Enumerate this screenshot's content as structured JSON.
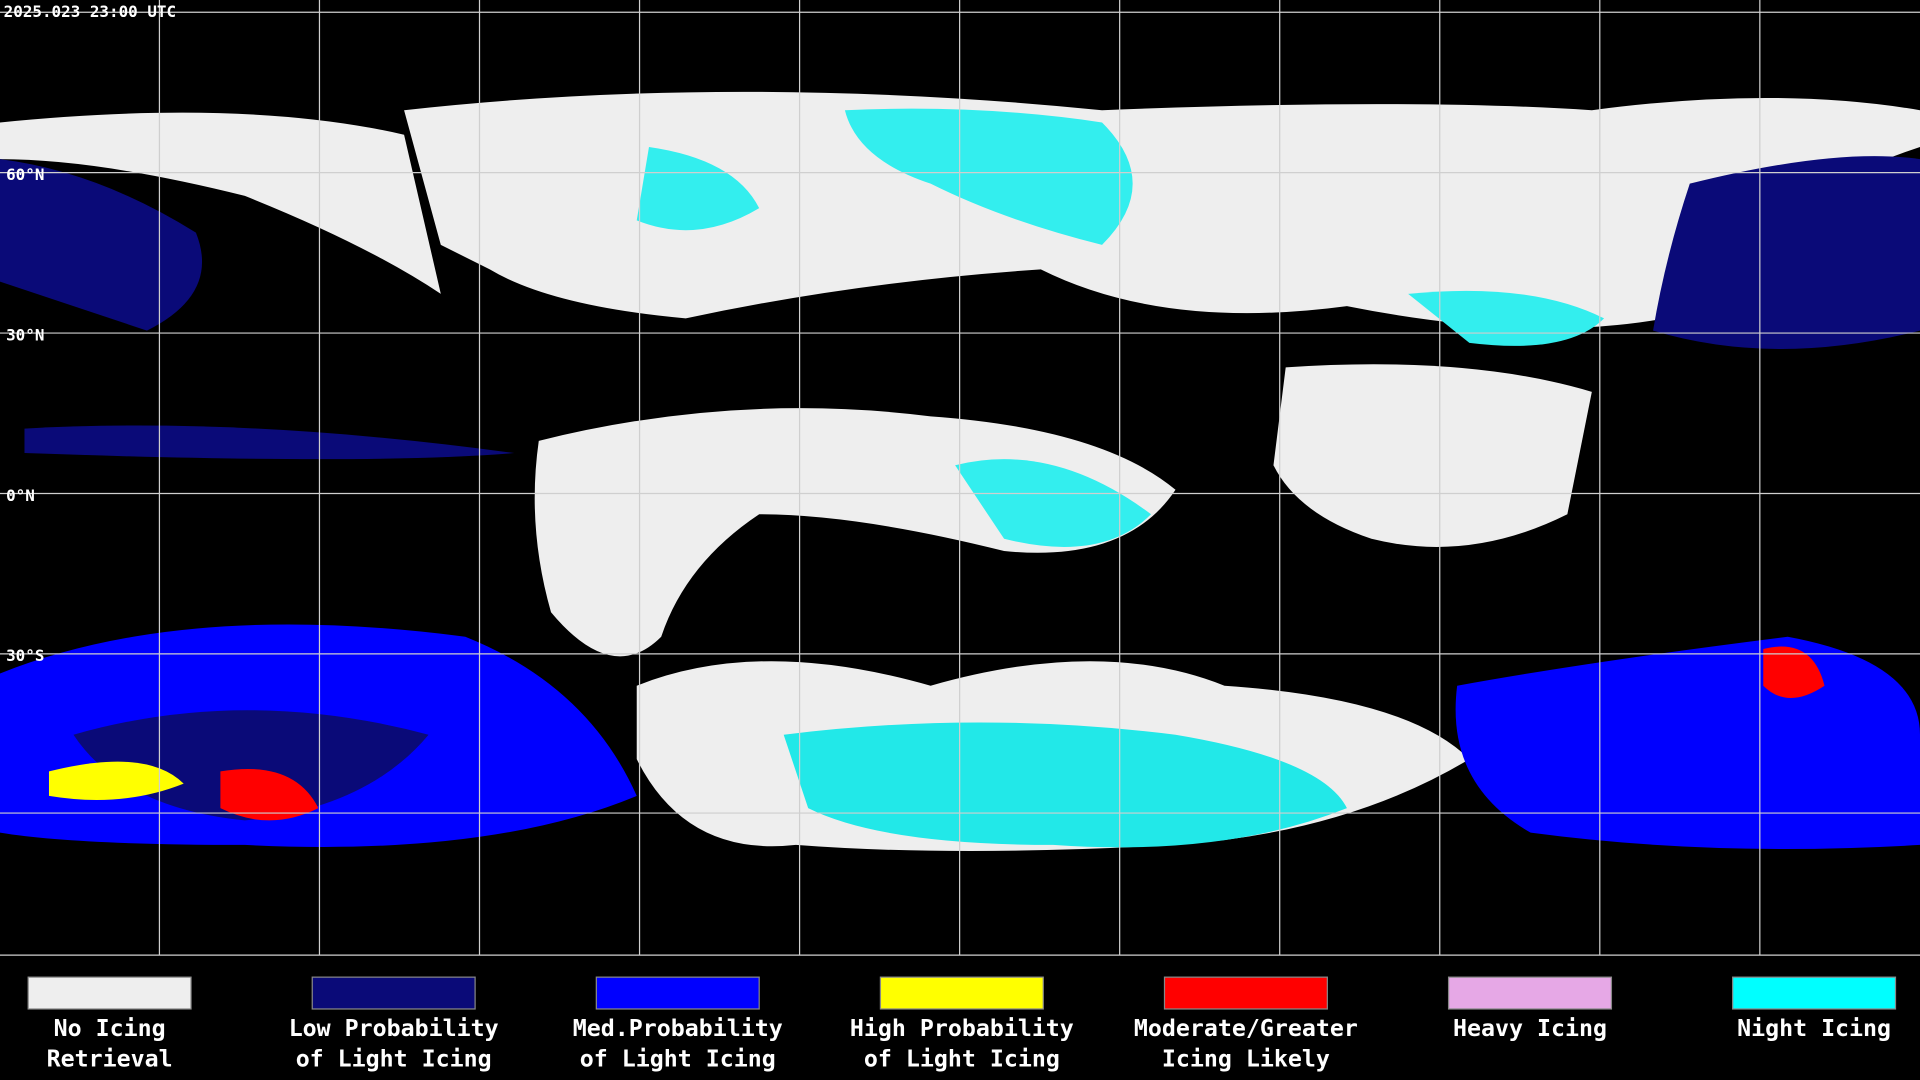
{
  "timestamp": "2025.023 23:00 UTC",
  "latitude_labels": [
    "60°N",
    "30°N",
    "0°N",
    "30°S"
  ],
  "legend": [
    {
      "label_lines": [
        "No Icing",
        "Retrieval"
      ],
      "color": "#eeeeee"
    },
    {
      "label_lines": [
        "Low Probability",
        "of Light Icing"
      ],
      "color": "#0a0a78"
    },
    {
      "label_lines": [
        "Med.Probability",
        "of Light Icing"
      ],
      "color": "#0000ff"
    },
    {
      "label_lines": [
        "High Probability",
        "of Light Icing"
      ],
      "color": "#ffff00"
    },
    {
      "label_lines": [
        "Moderate/Greater",
        "Icing Likely"
      ],
      "color": "#ff0000"
    },
    {
      "label_lines": [
        "Heavy Icing"
      ],
      "color": "#e6a8e6"
    },
    {
      "label_lines": [
        "Night Icing"
      ],
      "color": "#00ffff"
    }
  ]
}
